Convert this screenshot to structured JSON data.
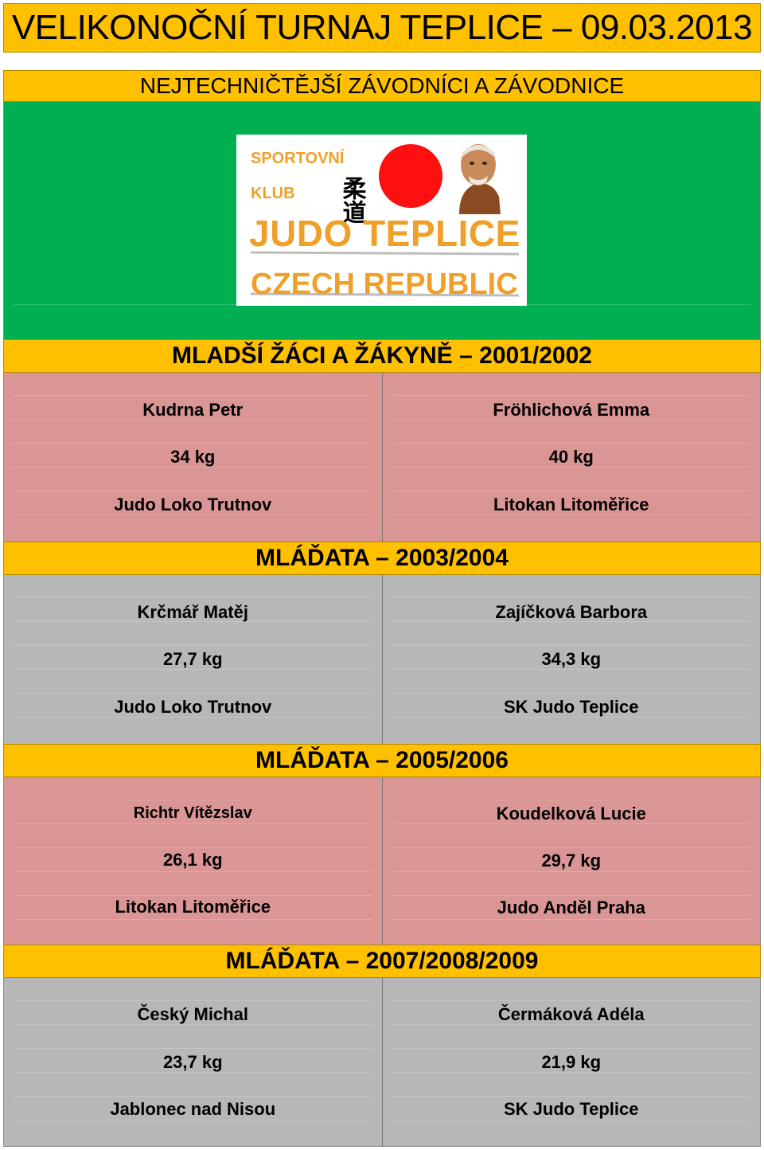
{
  "title": "VELIKONOČNÍ TURNAJ TEPLICE – 09.03.2013",
  "subtitle": "NEJTECHNIČTĚJŠÍ ZÁVODNÍCI A ZÁVODNICE",
  "logo": {
    "line_sportovni": "SPORTOVNÍ",
    "line_klub": "KLUB",
    "line_judo": "JUDO TEPLICE",
    "line_country": "CZECH REPUBLIC",
    "kanji": "柔道",
    "colors": {
      "text": "#f0a028",
      "sun": "#ff1010",
      "kanji": "#000000"
    }
  },
  "colors": {
    "header": "#ffc000",
    "banner": "#00b050",
    "pink": "#da9694",
    "grey": "#b7b7b7"
  },
  "categories": [
    {
      "label": "MLADŠÍ ŽÁCI A ŽÁKYNĚ – 2001/2002",
      "left": {
        "name": "Kudrna Petr",
        "weight": "34 kg",
        "club": "Judo Loko Trutnov"
      },
      "right": {
        "name": "Fröhlichová Emma",
        "weight": "40 kg",
        "club": "Litokan Litoměřice"
      }
    },
    {
      "label": "MLÁĎATA – 2003/2004",
      "left": {
        "name": "Krčmář Matěj",
        "weight": "27,7 kg",
        "club": "Judo Loko Trutnov"
      },
      "right": {
        "name": "Zajíčková Barbora",
        "weight": "34,3 kg",
        "club": "SK Judo Teplice"
      }
    },
    {
      "label": "MLÁĎATA – 2005/2006",
      "left": {
        "name": "Richtr Vítězslav",
        "weight": "26,1 kg",
        "club": "Litokan Litoměřice"
      },
      "right": {
        "name": "Koudelková Lucie",
        "weight": "29,7 kg",
        "club": "Judo Anděl Praha"
      }
    },
    {
      "label": "MLÁĎATA – 2007/2008/2009",
      "left": {
        "name": "Český Michal",
        "weight": "23,7 kg",
        "club": "Jablonec nad Nisou"
      },
      "right": {
        "name": "Čermáková Adéla",
        "weight": "21,9 kg",
        "club": "SK Judo Teplice"
      }
    }
  ]
}
